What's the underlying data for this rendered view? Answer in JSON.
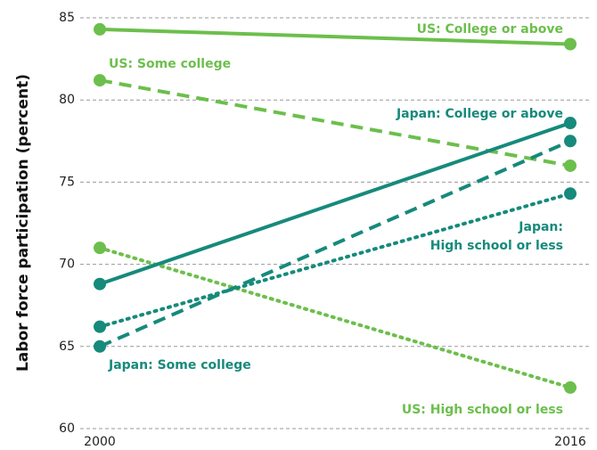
{
  "chart_data": {
    "type": "line",
    "y_label": "Labor force participation (percent)",
    "categories": [
      "2000",
      "2016"
    ],
    "ylim": [
      60,
      85
    ],
    "yticks": [
      60,
      65,
      70,
      75,
      80,
      85
    ],
    "grid": true,
    "series": [
      {
        "name": "US: College or above",
        "color": "#6cbf4c",
        "dash": "solid",
        "values": [
          84.3,
          83.4
        ]
      },
      {
        "name": "US: Some college",
        "color": "#6cbf4c",
        "dash": "dashed",
        "values": [
          81.2,
          76.0
        ]
      },
      {
        "name": "US: High school or less",
        "color": "#6cbf4c",
        "dash": "dotted",
        "values": [
          71.0,
          62.5
        ]
      },
      {
        "name": "Japan: College or above",
        "color": "#168a7b",
        "dash": "solid",
        "values": [
          68.8,
          78.6
        ]
      },
      {
        "name": "Japan: Some college",
        "color": "#168a7b",
        "dash": "dashed",
        "values": [
          65.0,
          77.5
        ]
      },
      {
        "name": "Japan: High school or less",
        "color": "#168a7b",
        "dash": "dotted",
        "values": [
          66.2,
          74.3
        ]
      }
    ]
  }
}
